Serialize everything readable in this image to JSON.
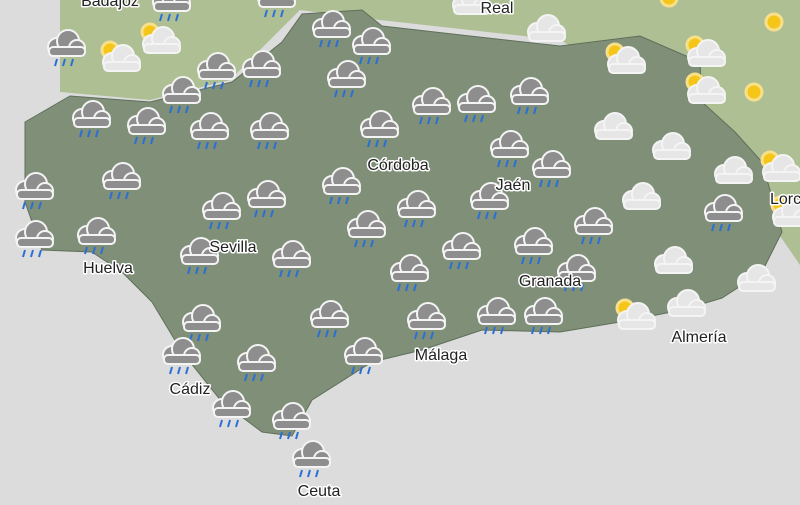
{
  "map": {
    "cities": [
      "Badajoz",
      "Real",
      "Córdoba",
      "Jaén",
      "Sevilla",
      "Huelva",
      "Granada",
      "Málaga",
      "Cádiz",
      "Almería",
      "Ceuta",
      "Lorca"
    ]
  }
}
